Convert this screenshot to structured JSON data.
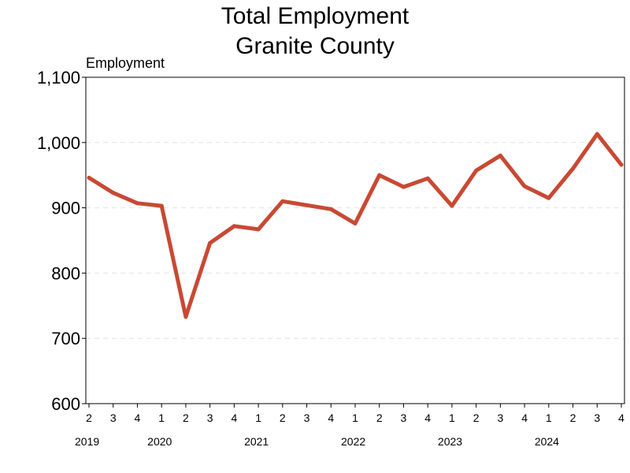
{
  "chart_data": {
    "type": "line",
    "title": "Total Employment",
    "subtitle": "Granite County",
    "ylabel": "Employment",
    "ylim": [
      600,
      1100
    ],
    "yticks": [
      600,
      700,
      800,
      900,
      1000,
      1100
    ],
    "ytick_labels": [
      "600",
      "700",
      "800",
      "900",
      "1,000",
      "1,100"
    ],
    "grid": true,
    "categories": [
      "2019 Q2",
      "2019 Q3",
      "2019 Q4",
      "2020 Q1",
      "2020 Q2",
      "2020 Q3",
      "2020 Q4",
      "2021 Q1",
      "2021 Q2",
      "2021 Q3",
      "2021 Q4",
      "2022 Q1",
      "2022 Q2",
      "2022 Q3",
      "2022 Q4",
      "2023 Q1",
      "2023 Q2",
      "2023 Q3",
      "2023 Q4",
      "2024 Q1",
      "2024 Q2",
      "2024 Q3",
      "2024 Q4"
    ],
    "quarter_labels": [
      "2",
      "3",
      "4",
      "1",
      "2",
      "3",
      "4",
      "1",
      "2",
      "3",
      "4",
      "1",
      "2",
      "3",
      "4",
      "1",
      "2",
      "3",
      "4",
      "1",
      "2",
      "3",
      "4"
    ],
    "year_labels": [
      {
        "label": "2019",
        "quarter_index": 0
      },
      {
        "label": "2020",
        "quarter_index": 3
      },
      {
        "label": "2021",
        "quarter_index": 7
      },
      {
        "label": "2022",
        "quarter_index": 11
      },
      {
        "label": "2023",
        "quarter_index": 15
      },
      {
        "label": "2024",
        "quarter_index": 19
      }
    ],
    "series": [
      {
        "values": [
          946,
          923,
          907,
          903,
          733,
          846,
          872,
          867,
          910,
          904,
          898,
          876,
          950,
          932,
          945,
          903,
          957,
          980,
          933,
          915,
          960,
          1013,
          966
        ],
        "color": "#c84933"
      }
    ]
  }
}
